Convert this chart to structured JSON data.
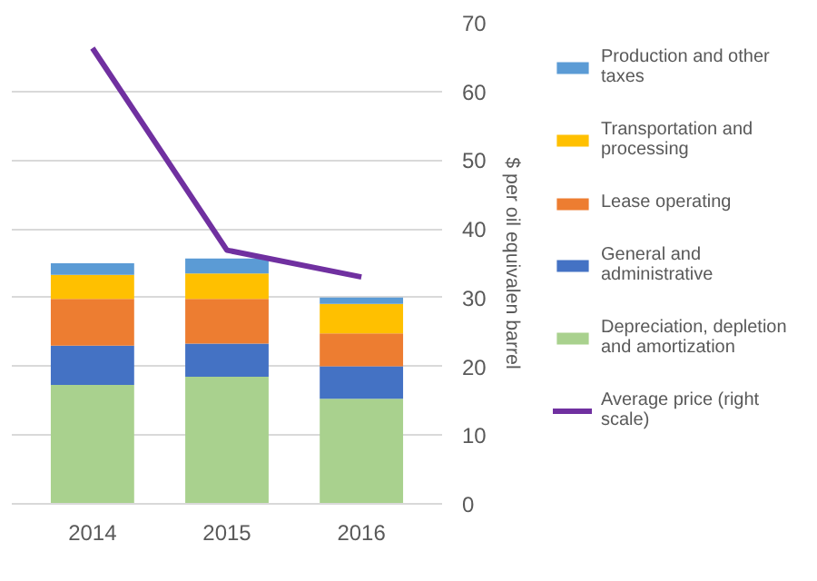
{
  "chart_data": {
    "type": "bar",
    "stacked": true,
    "categories": [
      "2014",
      "2015",
      "2016"
    ],
    "ylabel": "$ per oil equivalen barrel",
    "ylim": [
      0,
      70
    ],
    "yticks": [
      0,
      10,
      20,
      30,
      40,
      50,
      60,
      70
    ],
    "grid": "y",
    "legend": "right",
    "series": [
      {
        "name": "Depreciation, depletion and amortization",
        "color": "#a9d18e",
        "values": [
          17.3,
          18.5,
          15.3
        ]
      },
      {
        "name": "General and administrative",
        "color": "#4472c4",
        "values": [
          5.7,
          4.8,
          4.7
        ]
      },
      {
        "name": "Lease operating",
        "color": "#ed7d31",
        "values": [
          6.8,
          6.5,
          4.8
        ]
      },
      {
        "name": "Transportation and processing",
        "color": "#ffc000",
        "values": [
          3.5,
          3.7,
          4.3
        ]
      },
      {
        "name": "Production and other taxes",
        "color": "#5b9bd5",
        "values": [
          1.7,
          2.2,
          0.9
        ]
      },
      {
        "name": "Average price (right scale)",
        "type": "line",
        "color": "#7030a0",
        "values": [
          66.3,
          36.9,
          33.0
        ]
      }
    ]
  }
}
